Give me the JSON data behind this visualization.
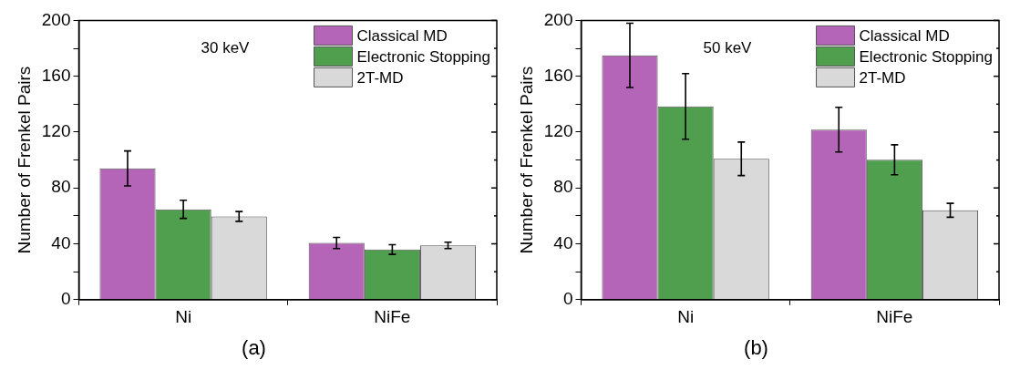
{
  "chart_data": [
    {
      "type": "bar",
      "title": "(a)",
      "annotations": [
        "30 keV"
      ],
      "ylabel": "Number of Frenkel Pairs",
      "categories": [
        "Ni",
        "NiFe"
      ],
      "ylim": [
        0,
        200
      ],
      "yticks": [
        0,
        {
          "value": 20,
          "label": null
        },
        40,
        {
          "value": 60,
          "label": null
        },
        80,
        {
          "value": 100,
          "label": null
        },
        120,
        {
          "value": 140,
          "label": null
        },
        160,
        {
          "value": 180,
          "label": null
        },
        200
      ],
      "grid": false,
      "legend": "top right",
      "series": [
        {
          "name": "Classical MD",
          "color": "#b565b8",
          "values": [
            94,
            40.6
          ],
          "errors": [
            12.5,
            4
          ]
        },
        {
          "name": "Electronic Stopping",
          "color": "#4f9f4f",
          "values": [
            64.7,
            35.9
          ],
          "errors": [
            6.5,
            3.5
          ]
        },
        {
          "name": "2T-MD",
          "color": "#d9d9d9",
          "values": [
            59.6,
            38.9
          ],
          "errors": [
            3.5,
            2.3
          ]
        }
      ]
    },
    {
      "type": "bar",
      "title": "(b)",
      "annotations": [
        "50 keV"
      ],
      "ylabel": "Number of Frenkel Pairs",
      "categories": [
        "Ni",
        "NiFe"
      ],
      "ylim": [
        0,
        200
      ],
      "yticks": [
        0,
        {
          "value": 20,
          "label": null
        },
        40,
        {
          "value": 60,
          "label": null
        },
        80,
        {
          "value": 100,
          "label": null
        },
        120,
        {
          "value": 140,
          "label": null
        },
        160,
        {
          "value": 180,
          "label": null
        },
        200
      ],
      "grid": false,
      "legend": "top right",
      "series": [
        {
          "name": "Classical MD",
          "color": "#b565b8",
          "values": [
            175,
            121.8
          ],
          "errors": [
            23,
            16
          ]
        },
        {
          "name": "Electronic Stopping",
          "color": "#4f9f4f",
          "values": [
            138.4,
            100.2
          ],
          "errors": [
            23.5,
            10.7
          ]
        },
        {
          "name": "2T-MD",
          "color": "#d9d9d9",
          "values": [
            100.9,
            64
          ],
          "errors": [
            12,
            5
          ]
        }
      ]
    }
  ]
}
